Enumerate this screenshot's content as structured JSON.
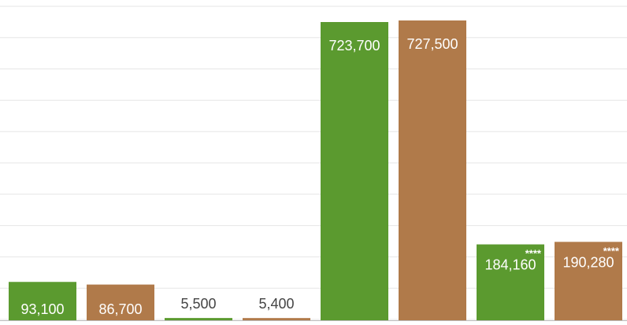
{
  "chart_data": {
    "type": "bar",
    "title": "",
    "xlabel": "",
    "ylabel": "",
    "ylim": [
      0,
      760000
    ],
    "grid": true,
    "colors": {
      "green": "#5b9a2f",
      "brown": "#b07a4a",
      "label_light": "#ffffff",
      "label_dark": "#444444"
    },
    "bars": [
      {
        "value": 93100,
        "label": "93,100",
        "color": "green",
        "note": ""
      },
      {
        "value": 86700,
        "label": "86,700",
        "color": "brown",
        "note": ""
      },
      {
        "value": 5500,
        "label": "5,500",
        "color": "green",
        "note": ""
      },
      {
        "value": 5400,
        "label": "5,400",
        "color": "brown",
        "note": ""
      },
      {
        "value": 723700,
        "label": "723,700",
        "color": "green",
        "note": ""
      },
      {
        "value": 727500,
        "label": "727,500",
        "color": "brown",
        "note": ""
      },
      {
        "value": 184160,
        "label": "184,160",
        "color": "green",
        "note": "****"
      },
      {
        "value": 190280,
        "label": "190,280",
        "color": "brown",
        "note": "****"
      }
    ]
  }
}
